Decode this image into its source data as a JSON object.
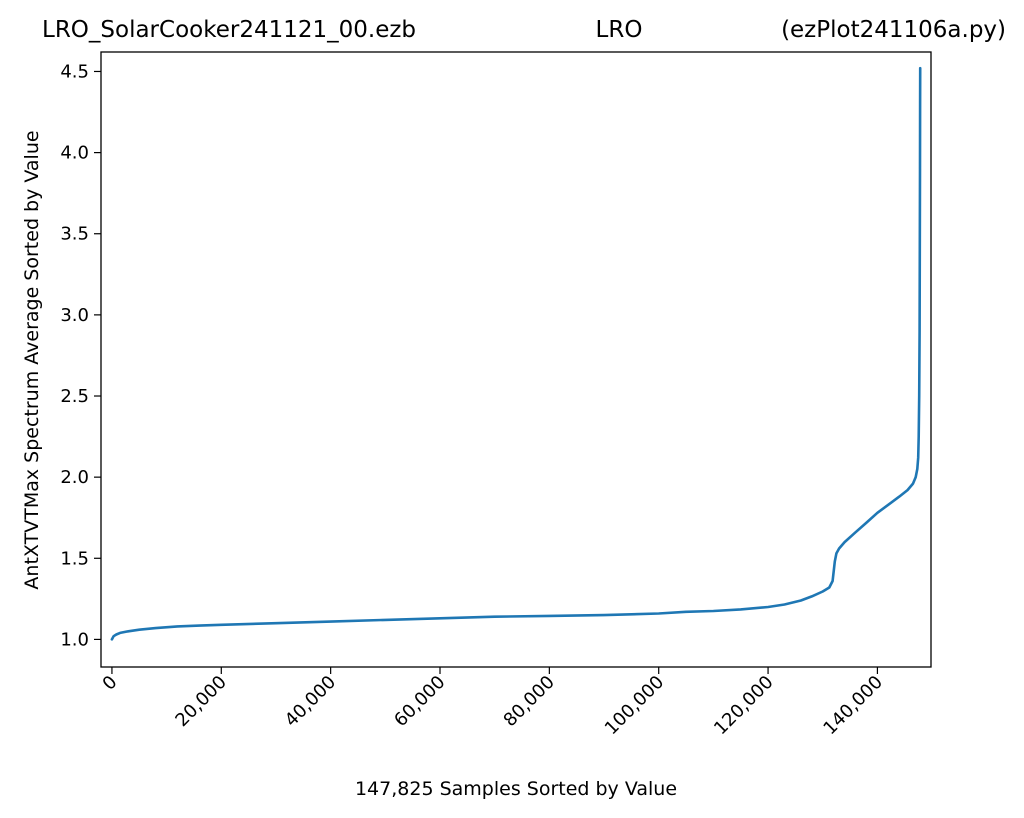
{
  "chart_data": {
    "type": "line",
    "title": {
      "left": "LRO_SolarCooker241121_00.ezb",
      "center": "LRO",
      "right": "(ezPlot241106a.py)"
    },
    "xlabel": "147,825 Samples Sorted by Value",
    "ylabel": "AntXTVTMax Spectrum Average Sorted by Value",
    "xlim": [
      -2000,
      149800
    ],
    "ylim": [
      0.83,
      4.62
    ],
    "xticks": [
      0,
      20000,
      40000,
      60000,
      80000,
      100000,
      120000,
      140000
    ],
    "xtick_labels": [
      "0",
      "20,000",
      "40,000",
      "60,000",
      "80,000",
      "100,000",
      "120,000",
      "140,000"
    ],
    "yticks": [
      1.0,
      1.5,
      2.0,
      2.5,
      3.0,
      3.5,
      4.0,
      4.5
    ],
    "ytick_labels": [
      "1.0",
      "1.5",
      "2.0",
      "2.5",
      "3.0",
      "3.5",
      "4.0",
      "4.5"
    ],
    "grid": false,
    "line_color": "#1f77b4",
    "series": [
      {
        "x": [
          0,
          300,
          800,
          1500,
          3000,
          5000,
          8000,
          12000,
          16000,
          20000,
          30000,
          40000,
          50000,
          60000,
          70000,
          80000,
          90000,
          100000,
          105000,
          110000,
          115000,
          120000,
          123000,
          126000,
          128000,
          130000,
          131200,
          131800,
          132000,
          132200,
          132500,
          133000,
          134000,
          136000,
          138000,
          140000,
          142000,
          144000,
          145500,
          146500,
          147000,
          147300,
          147450,
          147550,
          147650,
          147720,
          147760,
          147790,
          147810,
          147825
        ],
        "y": [
          1.0,
          1.02,
          1.03,
          1.04,
          1.05,
          1.06,
          1.07,
          1.08,
          1.085,
          1.09,
          1.1,
          1.11,
          1.12,
          1.13,
          1.14,
          1.145,
          1.15,
          1.16,
          1.17,
          1.175,
          1.185,
          1.2,
          1.215,
          1.24,
          1.265,
          1.295,
          1.32,
          1.36,
          1.42,
          1.48,
          1.53,
          1.56,
          1.6,
          1.66,
          1.72,
          1.78,
          1.83,
          1.88,
          1.92,
          1.96,
          2.0,
          2.05,
          2.12,
          2.25,
          2.5,
          2.9,
          3.4,
          3.9,
          4.3,
          4.52
        ]
      }
    ]
  }
}
